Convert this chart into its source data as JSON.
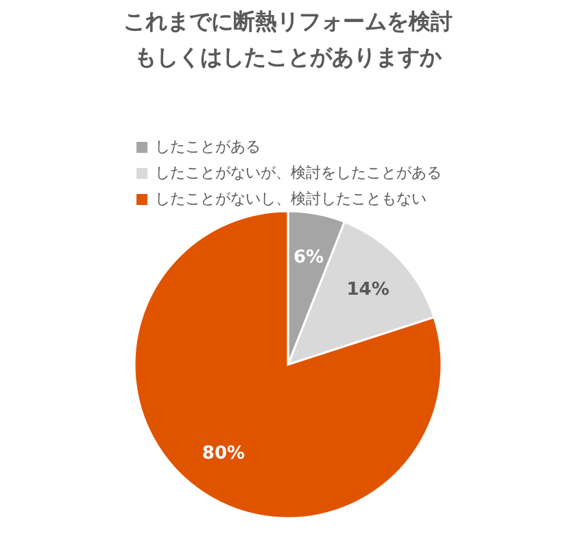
{
  "chart_data": {
    "type": "pie",
    "title": [
      "これまでに断熱リフォームを検討",
      "もしくはしたことがありますか"
    ],
    "categories": [
      "したことがある",
      "したことがないが、検討をしたことがある",
      "したことがないし、検討したこともない"
    ],
    "values": [
      6,
      14,
      80
    ],
    "colors": [
      "#a5a5a5",
      "#d9d9d9",
      "#e05400"
    ],
    "value_labels": [
      "6%",
      "14%",
      "80%"
    ],
    "legend": "top"
  }
}
